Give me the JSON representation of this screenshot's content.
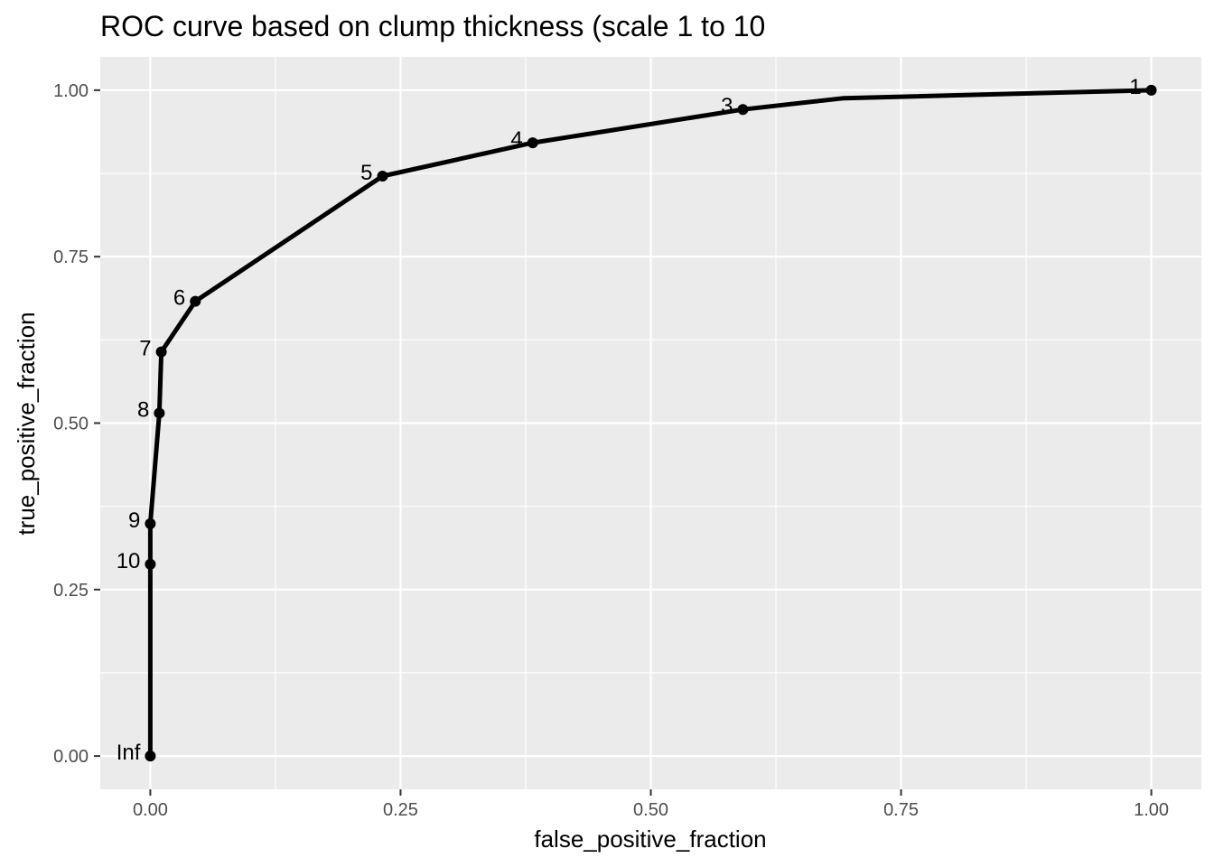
{
  "chart_data": {
    "type": "line",
    "title": "ROC curve based on clump thickness (scale 1 to 10",
    "xlabel": "false_positive_fraction",
    "ylabel": "true_positive_fraction",
    "xlim": [
      -0.05,
      1.05
    ],
    "ylim": [
      -0.05,
      1.05
    ],
    "xticks": [
      {
        "value": 0.0,
        "label": "0.00"
      },
      {
        "value": 0.25,
        "label": "0.25"
      },
      {
        "value": 0.5,
        "label": "0.50"
      },
      {
        "value": 0.75,
        "label": "0.75"
      },
      {
        "value": 1.0,
        "label": "1.00"
      }
    ],
    "yticks": [
      {
        "value": 0.0,
        "label": "0.00"
      },
      {
        "value": 0.25,
        "label": "0.25"
      },
      {
        "value": 0.5,
        "label": "0.50"
      },
      {
        "value": 0.75,
        "label": "0.75"
      },
      {
        "value": 1.0,
        "label": "1.00"
      }
    ],
    "grid": true,
    "legend": "none",
    "line": [
      {
        "x": 0.0,
        "y": 0.0
      },
      {
        "x": 0.0,
        "y": 0.288
      },
      {
        "x": 0.0,
        "y": 0.349
      },
      {
        "x": 0.009,
        "y": 0.515
      },
      {
        "x": 0.011,
        "y": 0.607
      },
      {
        "x": 0.045,
        "y": 0.683
      },
      {
        "x": 0.232,
        "y": 0.871
      },
      {
        "x": 0.382,
        "y": 0.921
      },
      {
        "x": 0.592,
        "y": 0.971
      },
      {
        "x": 0.693,
        "y": 0.988
      },
      {
        "x": 1.0,
        "y": 1.0
      }
    ],
    "points": [
      {
        "x": 0.0,
        "y": 0.0,
        "label": "Inf"
      },
      {
        "x": 0.0,
        "y": 0.288,
        "label": "10"
      },
      {
        "x": 0.0,
        "y": 0.349,
        "label": "9"
      },
      {
        "x": 0.009,
        "y": 0.515,
        "label": "8"
      },
      {
        "x": 0.011,
        "y": 0.607,
        "label": "7"
      },
      {
        "x": 0.045,
        "y": 0.683,
        "label": "6"
      },
      {
        "x": 0.232,
        "y": 0.871,
        "label": "5"
      },
      {
        "x": 0.382,
        "y": 0.921,
        "label": "4"
      },
      {
        "x": 0.592,
        "y": 0.971,
        "label": "3"
      },
      {
        "x": 1.0,
        "y": 1.0,
        "label": "1"
      }
    ],
    "colors": {
      "panel": "#ebebeb",
      "grid": "#ffffff",
      "line": "#000000",
      "tick": "#333333"
    }
  }
}
